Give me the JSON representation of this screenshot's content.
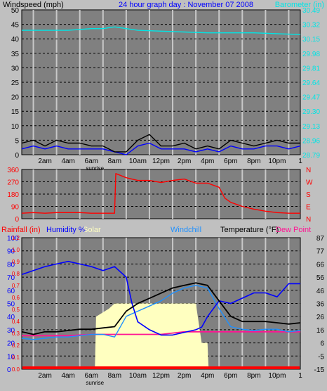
{
  "header": {
    "left_label": "Windspeed (mph)",
    "title": "24 hour graph day : November 07 2008",
    "right_label": "Barometer (in)"
  },
  "x_axis": {
    "ticks": [
      "2am",
      "4am",
      "6am",
      "8am",
      "10am",
      "12pm",
      "2pm",
      "4pm",
      "6pm",
      "8pm",
      "10pm",
      "1"
    ],
    "sunrise_label": "sunrise"
  },
  "colors": {
    "wind": "#000000",
    "gust_wind": "#0000ff",
    "barometer": "#00e5e5",
    "direction": "#ff0000",
    "rain": "#ff0000",
    "humidity": "#0000ff",
    "solar": "#ffffc0",
    "windchill": "#1e90ff",
    "temperature": "#000000",
    "dewpoint": "#ff1493",
    "plot_bg": "#808080"
  },
  "panel2": {
    "left_ticks": [
      "360",
      "270",
      "180",
      "90",
      "0"
    ],
    "right_ticks": [
      "N",
      "W",
      "S",
      "E",
      "N"
    ]
  },
  "panel3": {
    "labels": {
      "rain": "Rainfall (in)",
      "humidity": "Humidity %",
      "solar": "Solar",
      "windchill": "Windchill",
      "temperature": "Temperature (°F)",
      "dewpoint": "Dew Point"
    }
  },
  "chart_data": [
    {
      "type": "line",
      "x_unit": "hour of day",
      "xlim": [
        0,
        24
      ],
      "left_axis": {
        "label": "Windspeed (mph)",
        "ylim": [
          0,
          50
        ],
        "ticks": [
          0,
          5,
          10,
          15,
          20,
          25,
          30,
          35,
          40,
          45,
          50
        ]
      },
      "right_axis": {
        "label": "Barometer (in)",
        "ylim": [
          28.79,
          30.49
        ],
        "ticks": [
          "28.79",
          "28.96",
          "29.13",
          "29.30",
          "29.47",
          "29.64",
          "29.81",
          "29.98",
          "30.15",
          "30.32",
          "30.49"
        ]
      },
      "series": [
        {
          "name": "Windspeed",
          "axis": "left",
          "x": [
            0,
            1,
            2,
            3,
            4,
            5,
            6,
            7,
            8,
            9,
            10,
            11,
            12,
            13,
            14,
            15,
            16,
            17,
            18,
            19,
            20,
            21,
            22,
            23,
            24
          ],
          "values": [
            4,
            5,
            3,
            5,
            4,
            4,
            3,
            3,
            1,
            1,
            5,
            7,
            3,
            3,
            4,
            2,
            3,
            2,
            5,
            4,
            3,
            4,
            5,
            4,
            4
          ]
        },
        {
          "name": "Gust",
          "axis": "left",
          "x": [
            0,
            1,
            2,
            3,
            4,
            5,
            6,
            7,
            8,
            9,
            10,
            11,
            12,
            13,
            14,
            15,
            16,
            17,
            18,
            19,
            20,
            21,
            22,
            23,
            24
          ],
          "values": [
            2,
            3,
            2,
            3,
            2,
            2,
            2,
            2,
            1,
            0,
            3,
            4,
            2,
            2,
            2,
            1,
            2,
            1,
            3,
            2,
            2,
            3,
            3,
            2,
            3
          ]
        },
        {
          "name": "Barometer",
          "axis": "right",
          "x": [
            0,
            2,
            4,
            6,
            7,
            8,
            9,
            10,
            12,
            14,
            16,
            18,
            20,
            22,
            24
          ],
          "values": [
            30.25,
            30.25,
            30.25,
            30.27,
            30.27,
            30.29,
            30.27,
            30.25,
            30.24,
            30.23,
            30.22,
            30.22,
            30.22,
            30.21,
            30.2
          ]
        }
      ]
    },
    {
      "type": "line",
      "x_unit": "hour of day",
      "xlim": [
        0,
        24
      ],
      "ylim": [
        0,
        360
      ],
      "series": [
        {
          "name": "Wind direction",
          "x": [
            0,
            1,
            2,
            3,
            4,
            5,
            6,
            7,
            8,
            8.1,
            9,
            10,
            11,
            12,
            13,
            14,
            15,
            16,
            17,
            17.5,
            18,
            19,
            20,
            21,
            22,
            23,
            24
          ],
          "values": [
            40,
            45,
            40,
            45,
            45,
            45,
            40,
            40,
            40,
            330,
            300,
            280,
            280,
            265,
            280,
            290,
            260,
            260,
            230,
            150,
            120,
            90,
            70,
            55,
            45,
            40,
            40
          ]
        }
      ]
    },
    {
      "type": "line",
      "x_unit": "hour of day",
      "xlim": [
        0,
        24
      ],
      "left_axis": {
        "ylim": [
          0,
          100
        ],
        "ticks": [
          0,
          10,
          20,
          30,
          40,
          50,
          60,
          70,
          80,
          90,
          100
        ]
      },
      "rain_ticks": [
        "0.0",
        "0.1",
        "0.2",
        "0.3",
        "0.4",
        "0.5",
        "0.6",
        "0.7",
        "0.8",
        "0.9",
        "1.0",
        "1.2"
      ],
      "right_axis": {
        "ylim": [
          -15,
          87
        ],
        "ticks": [
          -15,
          -5,
          6,
          16,
          26,
          36,
          46,
          56,
          66,
          77,
          87
        ]
      },
      "series": [
        {
          "name": "Humidity",
          "axis": "left",
          "x": [
            0,
            1,
            2,
            3,
            4,
            5,
            6,
            7,
            8,
            9,
            9.5,
            10,
            11,
            12,
            13,
            14,
            15,
            15.5,
            16,
            17,
            18,
            19,
            20,
            21,
            22,
            23,
            24
          ],
          "values": [
            72,
            75,
            78,
            80,
            82,
            80,
            78,
            75,
            78,
            70,
            50,
            36,
            30,
            26,
            26,
            28,
            30,
            32,
            40,
            52,
            50,
            54,
            58,
            58,
            55,
            65,
            65
          ]
        },
        {
          "name": "Temperature",
          "axis": "right",
          "x": [
            0,
            1,
            2,
            3,
            4,
            5,
            6,
            7,
            8,
            9,
            10,
            11,
            12,
            13,
            14,
            15,
            16,
            17,
            18,
            19,
            20,
            21,
            22,
            23,
            24
          ],
          "values": [
            14,
            12,
            14,
            14,
            15,
            16,
            16,
            17,
            18,
            30,
            36,
            40,
            44,
            48,
            50,
            52,
            50,
            38,
            26,
            22,
            22,
            22,
            21,
            20,
            21
          ]
        },
        {
          "name": "Windchill",
          "axis": "right",
          "x": [
            0,
            1,
            2,
            3,
            4,
            5,
            6,
            7,
            8,
            9,
            10,
            11,
            12,
            13,
            14,
            15,
            16,
            17,
            18,
            19,
            20,
            21,
            22,
            23,
            24
          ],
          "values": [
            9,
            8,
            9,
            10,
            10,
            11,
            12,
            12,
            10,
            26,
            30,
            34,
            38,
            44,
            48,
            50,
            48,
            32,
            18,
            16,
            15,
            16,
            16,
            14,
            15
          ]
        },
        {
          "name": "Dew Point",
          "axis": "right",
          "x": [
            0,
            2,
            4,
            6,
            8,
            10,
            12,
            14,
            16,
            18,
            20,
            22,
            24
          ],
          "values": [
            11,
            11,
            11,
            12,
            12,
            12,
            12,
            14,
            14,
            14,
            14,
            14,
            14
          ]
        },
        {
          "name": "Solar",
          "axis": "left",
          "x": [
            6.3,
            6.4,
            7.5,
            8,
            9,
            10,
            11,
            12,
            13,
            14,
            15,
            15.5,
            16,
            16.1
          ],
          "values": [
            0,
            40,
            46,
            50,
            50,
            50,
            50,
            50,
            50,
            50,
            50,
            20,
            20,
            0
          ]
        },
        {
          "name": "Rainfall",
          "axis": "rain",
          "x": [
            0,
            24
          ],
          "values": [
            0,
            0
          ]
        }
      ]
    }
  ]
}
